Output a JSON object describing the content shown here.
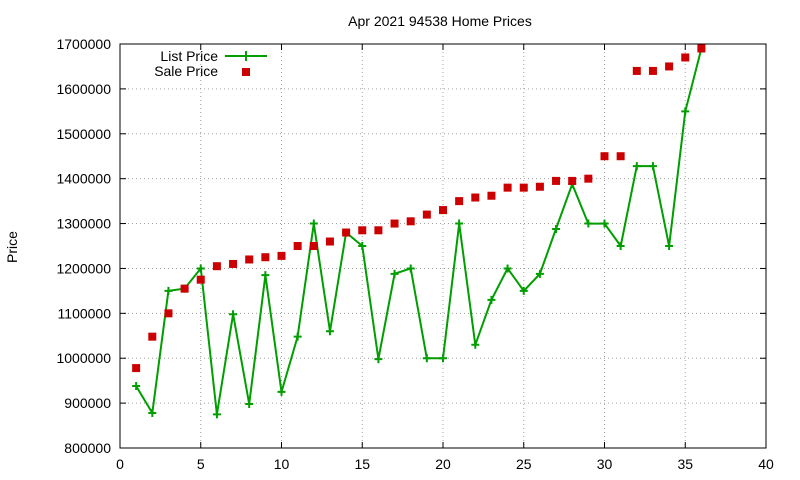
{
  "chart_data": {
    "type": "line",
    "title": "Apr 2021 94538 Home Prices",
    "xlabel": "",
    "ylabel": "Price",
    "xlim": [
      0,
      40
    ],
    "ylim": [
      800000,
      1700000
    ],
    "x_ticks": [
      "0",
      "5",
      "10",
      "15",
      "20",
      "25",
      "30",
      "35",
      "40"
    ],
    "y_ticks": [
      "800000",
      "900000",
      "1000000",
      "1100000",
      "1200000",
      "1300000",
      "1400000",
      "1500000",
      "1600000",
      "1700000"
    ],
    "grid": true,
    "legend_position": "top-left",
    "series": [
      {
        "name": "List Price",
        "style": "line-with-plus-markers",
        "color": "#009e00",
        "x": [
          1,
          2,
          3,
          4,
          5,
          6,
          7,
          8,
          9,
          10,
          11,
          12,
          13,
          14,
          15,
          16,
          17,
          18,
          19,
          20,
          21,
          22,
          23,
          24,
          25,
          26,
          27,
          28,
          29,
          30,
          31,
          32,
          33,
          34,
          35,
          36
        ],
        "values": [
          938000,
          878000,
          1150000,
          1155000,
          1200000,
          875000,
          1098000,
          898000,
          1185000,
          925000,
          1048000,
          1300000,
          1060000,
          1280000,
          1250000,
          998000,
          1188000,
          1200000,
          1000000,
          1000000,
          1300000,
          1030000,
          1130000,
          1200000,
          1150000,
          1188000,
          1288000,
          1388000,
          1300000,
          1300000,
          1250000,
          1428000,
          1428000,
          1250000,
          1550000,
          1690000
        ]
      },
      {
        "name": "Sale Price",
        "style": "square-markers",
        "color": "#cc0000",
        "x": [
          1,
          2,
          3,
          4,
          5,
          6,
          7,
          8,
          9,
          10,
          11,
          12,
          13,
          14,
          15,
          16,
          17,
          18,
          19,
          20,
          21,
          22,
          23,
          24,
          25,
          26,
          27,
          28,
          29,
          30,
          31,
          32,
          33,
          34,
          35,
          36
        ],
        "values": [
          978000,
          1048000,
          1100000,
          1155000,
          1175000,
          1205000,
          1210000,
          1220000,
          1225000,
          1228000,
          1250000,
          1250000,
          1260000,
          1280000,
          1285000,
          1285000,
          1300000,
          1305000,
          1320000,
          1330000,
          1350000,
          1358000,
          1362000,
          1380000,
          1380000,
          1382000,
          1395000,
          1395000,
          1400000,
          1450000,
          1450000,
          1640000,
          1640000,
          1650000,
          1670000,
          1690000
        ]
      }
    ]
  }
}
